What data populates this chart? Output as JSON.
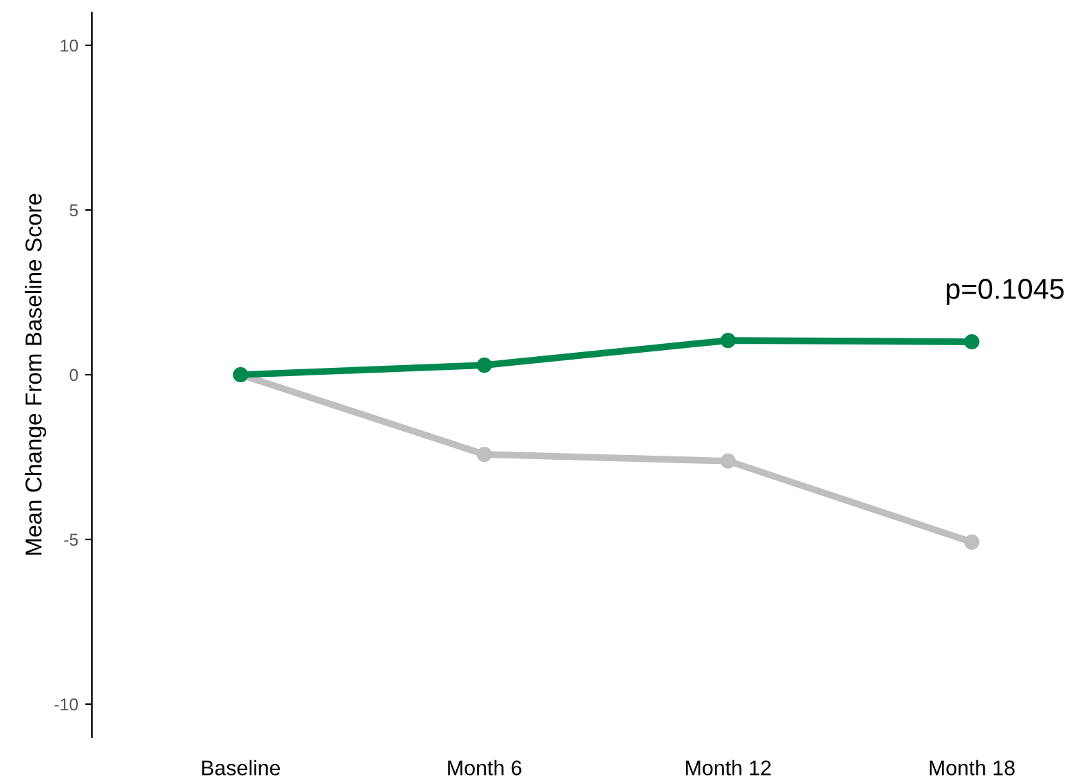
{
  "chart_data": {
    "type": "line",
    "ylabel": "Mean Change From Baseline Score",
    "categories": [
      "Baseline",
      "Month 6",
      "Month 12",
      "Month 18"
    ],
    "series": [
      {
        "color": "#00894f",
        "values": [
          0,
          0.29,
          1.04,
          1.0
        ]
      },
      {
        "color": "#bfbfbf",
        "values": [
          0,
          -2.42,
          -2.62,
          -5.08
        ]
      }
    ],
    "ylim": [
      -11,
      11
    ],
    "yticks": [
      -10,
      -5,
      0,
      5,
      10
    ],
    "grid": false,
    "marker": "circle",
    "line_style": "solid",
    "annotations": [
      "p=0.1045"
    ]
  }
}
